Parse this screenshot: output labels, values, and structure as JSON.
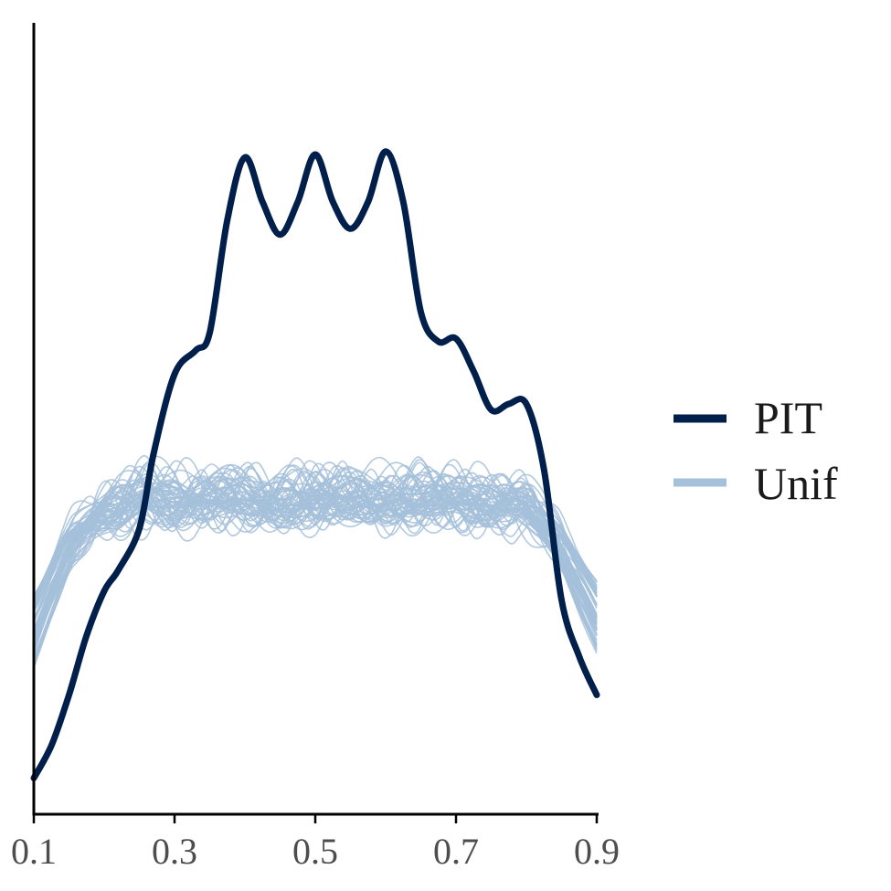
{
  "chart_data": {
    "type": "line",
    "title": "",
    "xlabel": "",
    "ylabel": "",
    "xlim": [
      0.1,
      0.9
    ],
    "x_ticks": [
      {
        "value": 0.1,
        "label": "0.1"
      },
      {
        "value": 0.3,
        "label": "0.3"
      },
      {
        "value": 0.5,
        "label": "0.5"
      },
      {
        "value": 0.7,
        "label": "0.7"
      },
      {
        "value": 0.9,
        "label": "0.9"
      }
    ],
    "y_axis_labeled": false,
    "grid": false,
    "legend_position": "right",
    "legend": [
      {
        "label": "PIT",
        "color": "#011f4b"
      },
      {
        "label": "Unif",
        "color": "#a5c0d9"
      }
    ],
    "unif_replicates": {
      "name": "Unif",
      "color": "#a5c0d9",
      "count": 60,
      "description_values": "kernel density curves of uniform draws; plateau roughly at the same height as 0.5 of PIT peak",
      "x": [
        0.1,
        0.15,
        0.2,
        0.25,
        0.3,
        0.35,
        0.4,
        0.45,
        0.5,
        0.55,
        0.6,
        0.65,
        0.7,
        0.75,
        0.8,
        0.85,
        0.9
      ],
      "mean_y": [
        0.55,
        0.84,
        0.97,
        1.0,
        1.0,
        1.0,
        1.0,
        1.0,
        1.0,
        1.0,
        1.0,
        1.0,
        1.0,
        1.0,
        0.97,
        0.84,
        0.6
      ],
      "spread": 0.08
    },
    "series": [
      {
        "name": "PIT",
        "color": "#011f4b",
        "x": [
          0.1,
          0.125,
          0.15,
          0.175,
          0.2,
          0.22,
          0.25,
          0.27,
          0.3,
          0.33,
          0.35,
          0.375,
          0.4,
          0.425,
          0.45,
          0.475,
          0.5,
          0.525,
          0.55,
          0.575,
          0.6,
          0.625,
          0.65,
          0.675,
          0.7,
          0.725,
          0.75,
          0.775,
          0.8,
          0.825,
          0.85,
          0.875,
          0.9
        ],
        "y": [
          0.06,
          0.17,
          0.34,
          0.54,
          0.69,
          0.76,
          0.9,
          1.15,
          1.42,
          1.5,
          1.56,
          1.94,
          2.15,
          2.0,
          1.89,
          2.0,
          2.16,
          2.0,
          1.91,
          2.0,
          2.17,
          2.0,
          1.63,
          1.53,
          1.54,
          1.43,
          1.3,
          1.32,
          1.32,
          1.1,
          0.66,
          0.47,
          0.34
        ]
      }
    ]
  }
}
